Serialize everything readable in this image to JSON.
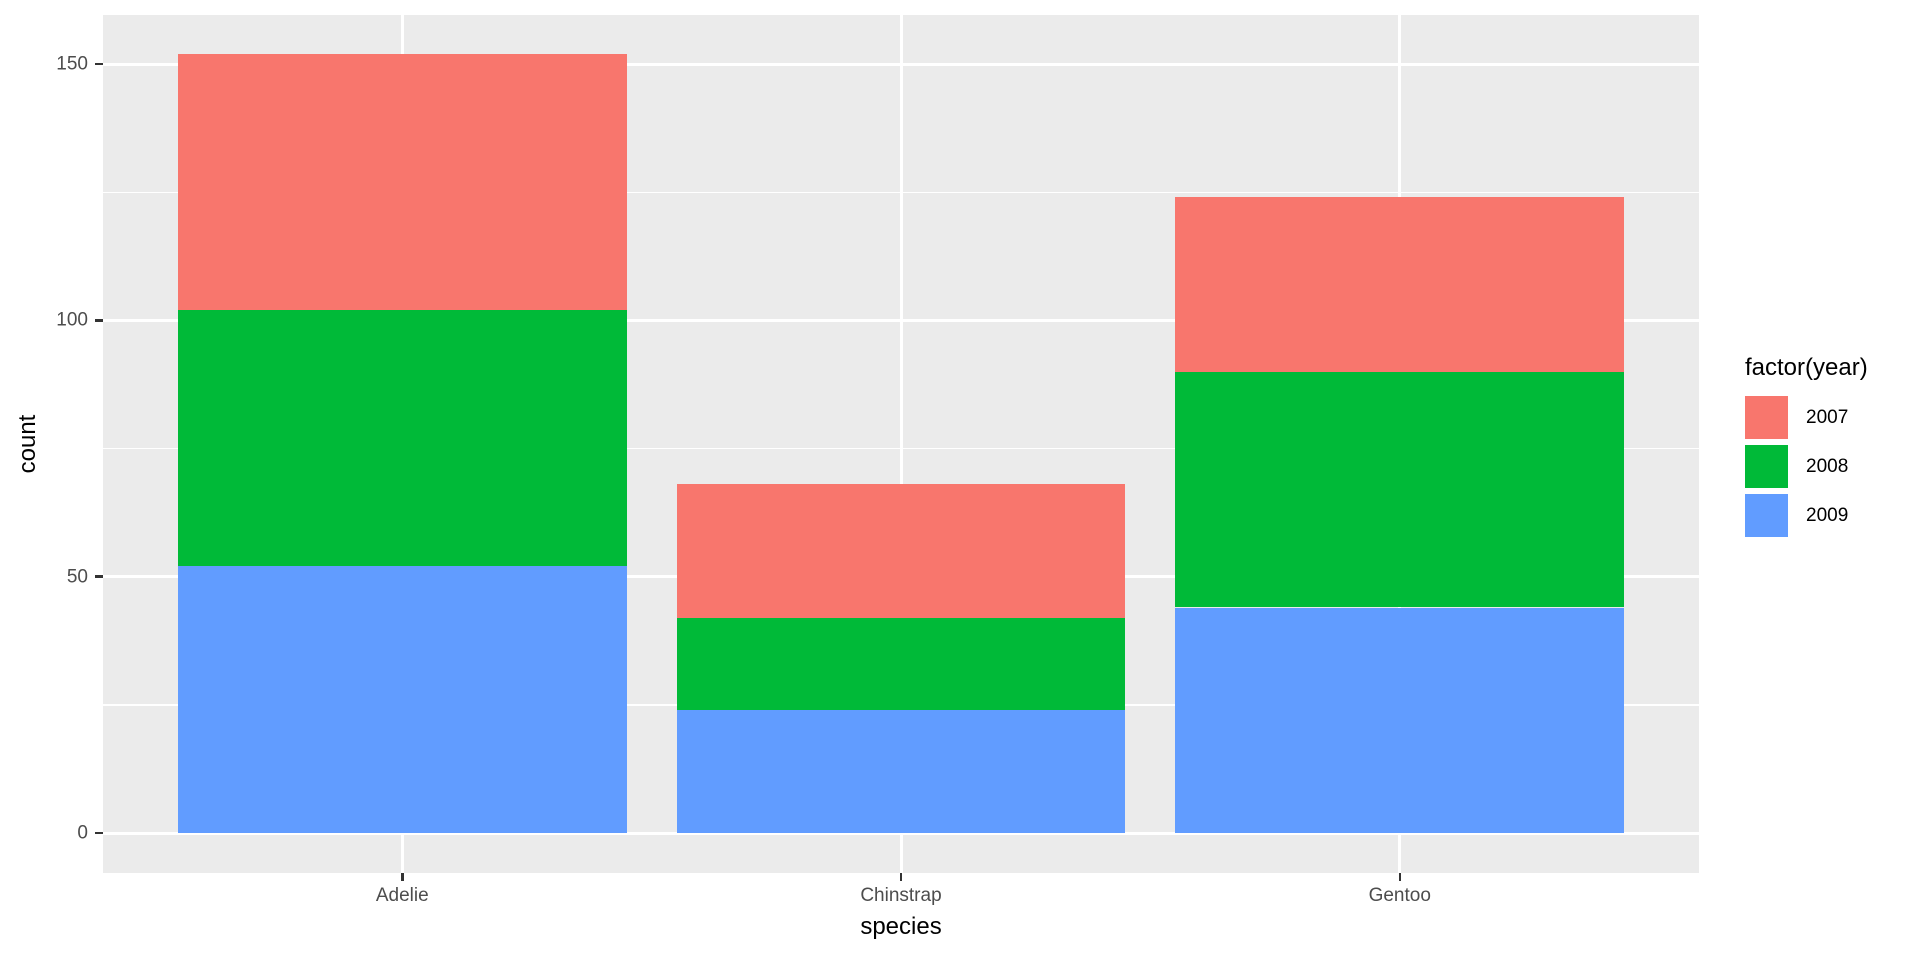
{
  "figure": {
    "background": "#FFFFFF",
    "panel_background": "#EBEBEB",
    "gridline_color": "#FFFFFF",
    "tick_mark_color": "#333333",
    "tick_label_color": "#4D4D4D",
    "title_text_color": "#000000"
  },
  "chart_data": {
    "type": "bar",
    "stacked": true,
    "title": "",
    "xlabel": "species",
    "ylabel": "count",
    "categories": [
      "Adelie",
      "Chinstrap",
      "Gentoo"
    ],
    "series": [
      {
        "name": "2007",
        "color": "#F8766D",
        "values": [
          50,
          26,
          34
        ]
      },
      {
        "name": "2008",
        "color": "#00BA38",
        "values": [
          50,
          18,
          46
        ]
      },
      {
        "name": "2009",
        "color": "#619CFF",
        "values": [
          52,
          24,
          44
        ]
      }
    ],
    "stack_order_bottom_to_top": [
      "2009",
      "2008",
      "2007"
    ],
    "totals": [
      152,
      68,
      124
    ],
    "y_axis": {
      "major_ticks": [
        0,
        50,
        100,
        150
      ],
      "minor_gridlines": [
        25,
        75,
        125
      ],
      "ylim": [
        -7.8,
        159.6
      ]
    },
    "x_axis": {
      "bar_width_fraction": 0.9,
      "domain": [
        0.4,
        3.6
      ]
    },
    "grid": true,
    "legend": {
      "title": "factor(year)",
      "position": "right",
      "entries": [
        {
          "label": "2007",
          "color": "#F8766D"
        },
        {
          "label": "2008",
          "color": "#00BA38"
        },
        {
          "label": "2009",
          "color": "#619CFF"
        }
      ]
    }
  }
}
